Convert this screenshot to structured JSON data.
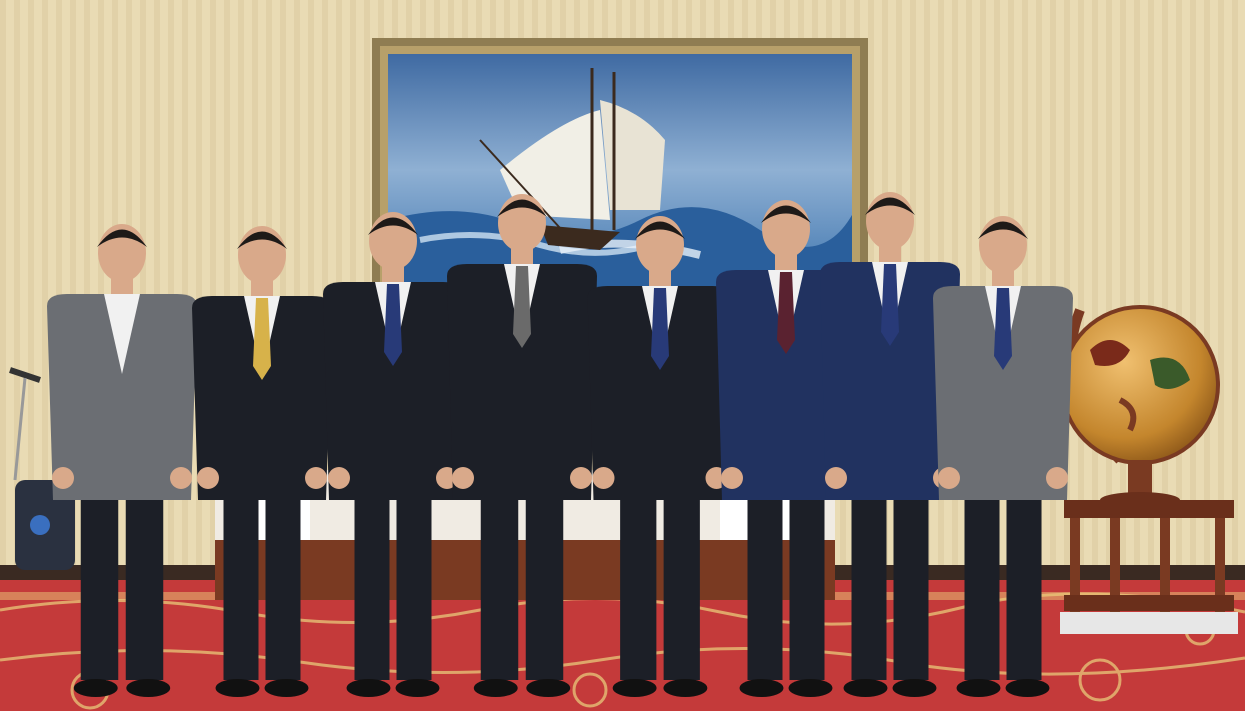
{
  "image": {
    "kind": "photograph",
    "subject": "group-of-eight-men-in-suits",
    "colors": {
      "wall": "#e9dbb4",
      "wall_stripe": "#dccb9d",
      "carpet": "#c43a3a",
      "carpet_pattern": "#e9c97a",
      "painting_sky": "#4e7fb8",
      "painting_sea": "#2f6aa8",
      "frame": "#8f7d52",
      "globe": "#c4862d",
      "wood": "#7a3a22",
      "suit_dark": "#1c1f27",
      "suit_navy": "#213260",
      "suit_gray": "#6b6e73",
      "skin": "#d9a98a",
      "shirt": "#f1f1f1"
    }
  },
  "people": [
    {
      "suit": "gray",
      "tie": "none"
    },
    {
      "suit": "dark",
      "tie": "gold"
    },
    {
      "suit": "dark",
      "tie": "navy"
    },
    {
      "suit": "dark",
      "tie": "gray"
    },
    {
      "suit": "dark",
      "tie": "navy"
    },
    {
      "suit": "navy",
      "tie": "burgundy"
    },
    {
      "suit": "navy",
      "tie": "navy"
    },
    {
      "suit": "gray",
      "tie": "navy"
    }
  ],
  "objects": [
    "ship-painting",
    "world-globe",
    "wooden-side-table",
    "red-patterned-carpet",
    "sofa"
  ]
}
